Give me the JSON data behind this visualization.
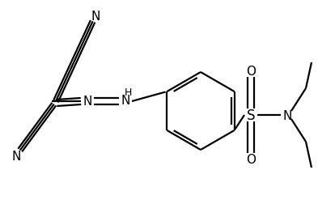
{
  "bg_color": "#ffffff",
  "line_color": "#000000",
  "lw": 1.6,
  "figsize": [
    3.93,
    2.53
  ],
  "dpi": 100,
  "xlim": [
    0,
    393
  ],
  "ylim": [
    0,
    253
  ]
}
